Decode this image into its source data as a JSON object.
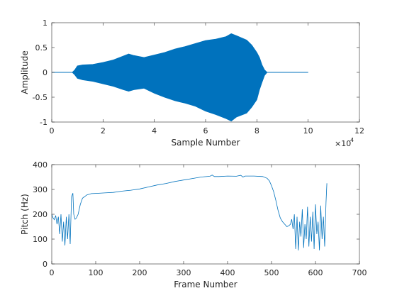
{
  "chart_data": [
    {
      "type": "line",
      "title": "",
      "xlabel": "Sample Number",
      "ylabel": "Amplitude",
      "xlim": [
        0,
        120000
      ],
      "ylim": [
        -1,
        1
      ],
      "x_ticks": [
        0,
        2,
        4,
        6,
        8,
        10,
        12
      ],
      "x_tick_labels": [
        "0",
        "2",
        "4",
        "6",
        "8",
        "10",
        "12"
      ],
      "x_exponent_label": "×10",
      "x_exponent_power": "4",
      "y_ticks": [
        -1,
        -0.5,
        0,
        0.5,
        1
      ],
      "y_tick_labels": [
        "-1",
        "-0.5",
        "0",
        "0.5",
        "1"
      ],
      "grid": false,
      "color": "#0072BD",
      "series": [
        {
          "envelope_x": [
            0,
            8000,
            9000,
            10000,
            12000,
            16000,
            20000,
            24000,
            28000,
            30000,
            32000,
            36000,
            40000,
            44000,
            48000,
            52000,
            56000,
            60000,
            64000,
            68000,
            70000,
            72000,
            76000,
            78000,
            80000,
            81000,
            82000,
            83000,
            84000,
            100000
          ],
          "envelope_upper": [
            0,
            0,
            0.05,
            0.13,
            0.15,
            0.16,
            0.2,
            0.25,
            0.33,
            0.37,
            0.34,
            0.3,
            0.35,
            0.4,
            0.47,
            0.52,
            0.58,
            0.64,
            0.67,
            0.72,
            0.78,
            0.74,
            0.65,
            0.55,
            0.4,
            0.3,
            0.15,
            0.05,
            0,
            0
          ],
          "envelope_lower": [
            0,
            0,
            -0.05,
            -0.12,
            -0.15,
            -0.18,
            -0.23,
            -0.28,
            -0.35,
            -0.38,
            -0.35,
            -0.32,
            -0.42,
            -0.5,
            -0.57,
            -0.62,
            -0.68,
            -0.78,
            -0.85,
            -0.93,
            -0.98,
            -0.9,
            -0.82,
            -0.7,
            -0.55,
            -0.35,
            -0.2,
            -0.06,
            0,
            0
          ]
        }
      ]
    },
    {
      "type": "line",
      "title": "",
      "xlabel": "Frame Number",
      "ylabel": "Pitch (Hz)",
      "xlim": [
        0,
        700
      ],
      "ylim": [
        0,
        400
      ],
      "x_ticks": [
        0,
        100,
        200,
        300,
        400,
        500,
        600,
        700
      ],
      "x_tick_labels": [
        "0",
        "100",
        "200",
        "300",
        "400",
        "500",
        "600",
        "700"
      ],
      "y_ticks": [
        0,
        100,
        200,
        300,
        400
      ],
      "y_tick_labels": [
        "0",
        "100",
        "200",
        "300",
        "400"
      ],
      "grid": false,
      "color": "#0072BD",
      "series": [
        {
          "x": [
            0,
            3,
            6,
            9,
            12,
            15,
            18,
            21,
            24,
            27,
            30,
            33,
            36,
            39,
            42,
            45,
            48,
            50,
            53,
            56,
            60,
            65,
            70,
            80,
            90,
            100,
            120,
            140,
            160,
            180,
            200,
            220,
            240,
            260,
            280,
            300,
            320,
            340,
            360,
            365,
            370,
            380,
            400,
            420,
            430,
            435,
            440,
            460,
            480,
            490,
            495,
            500,
            505,
            510,
            515,
            520,
            525,
            530,
            535,
            540,
            543,
            546,
            549,
            552,
            555,
            558,
            561,
            564,
            567,
            570,
            573,
            576,
            579,
            582,
            585,
            588,
            591,
            594,
            597,
            600,
            603,
            606,
            609,
            612,
            615,
            618,
            621,
            624,
            626
          ],
          "y": [
            200,
            185,
            178,
            195,
            160,
            190,
            120,
            200,
            90,
            170,
            75,
            190,
            100,
            200,
            80,
            270,
            285,
            200,
            180,
            185,
            200,
            240,
            265,
            278,
            283,
            284,
            286,
            288,
            293,
            297,
            302,
            310,
            318,
            324,
            332,
            338,
            344,
            350,
            353,
            358,
            352,
            352,
            354,
            353,
            357,
            350,
            354,
            354,
            352,
            345,
            335,
            315,
            290,
            255,
            215,
            185,
            170,
            160,
            150,
            155,
            160,
            180,
            140,
            200,
            60,
            190,
            55,
            170,
            110,
            220,
            65,
            160,
            100,
            230,
            70,
            190,
            90,
            210,
            60,
            240,
            120,
            170,
            55,
            235,
            100,
            190,
            70,
            250,
            325
          ]
        }
      ]
    }
  ]
}
